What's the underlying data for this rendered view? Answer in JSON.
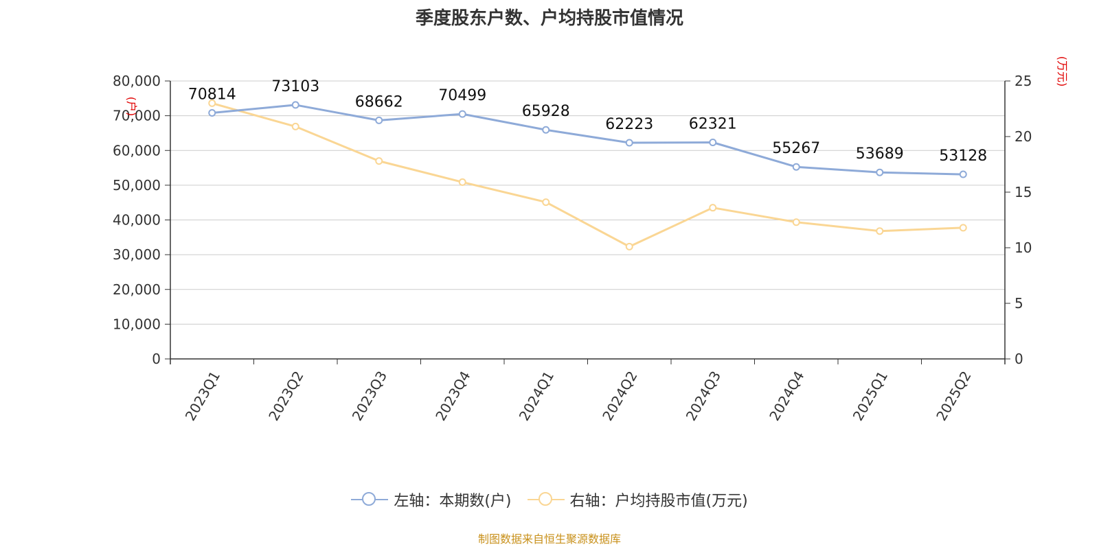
{
  "chart_data": {
    "type": "line",
    "title": "季度股东户数、户均持股市值情况",
    "categories": [
      "2023Q1",
      "2023Q2",
      "2023Q3",
      "2023Q4",
      "2024Q1",
      "2024Q2",
      "2024Q3",
      "2024Q4",
      "2025Q1",
      "2025Q2"
    ],
    "left_axis": {
      "unit": "(户)",
      "ylim": [
        0,
        80000
      ],
      "ticks": [
        "0",
        "10,000",
        "20,000",
        "30,000",
        "40,000",
        "50,000",
        "60,000",
        "70,000",
        "80,000"
      ]
    },
    "right_axis": {
      "unit": "(万元)",
      "ylim": [
        0,
        25
      ],
      "ticks": [
        "0",
        "5",
        "10",
        "15",
        "20",
        "25"
      ]
    },
    "series": [
      {
        "name": "左轴：本期数(户)",
        "axis": "left",
        "color": "#8eaad8",
        "values": [
          70814,
          73103,
          68662,
          70499,
          65928,
          62223,
          62321,
          55267,
          53689,
          53128
        ],
        "labels": [
          "70814",
          "73103",
          "68662",
          "70499",
          "65928",
          "62223",
          "62321",
          "55267",
          "53689",
          "53128"
        ]
      },
      {
        "name": "右轴：户均持股市值(万元)",
        "axis": "right",
        "color": "#fad694",
        "values": [
          23.0,
          20.9,
          17.8,
          15.9,
          14.1,
          10.1,
          13.6,
          12.3,
          11.5,
          11.8
        ]
      }
    ],
    "grid": true,
    "legend_position": "bottom-center"
  },
  "source": "制图数据来自恒生聚源数据库"
}
